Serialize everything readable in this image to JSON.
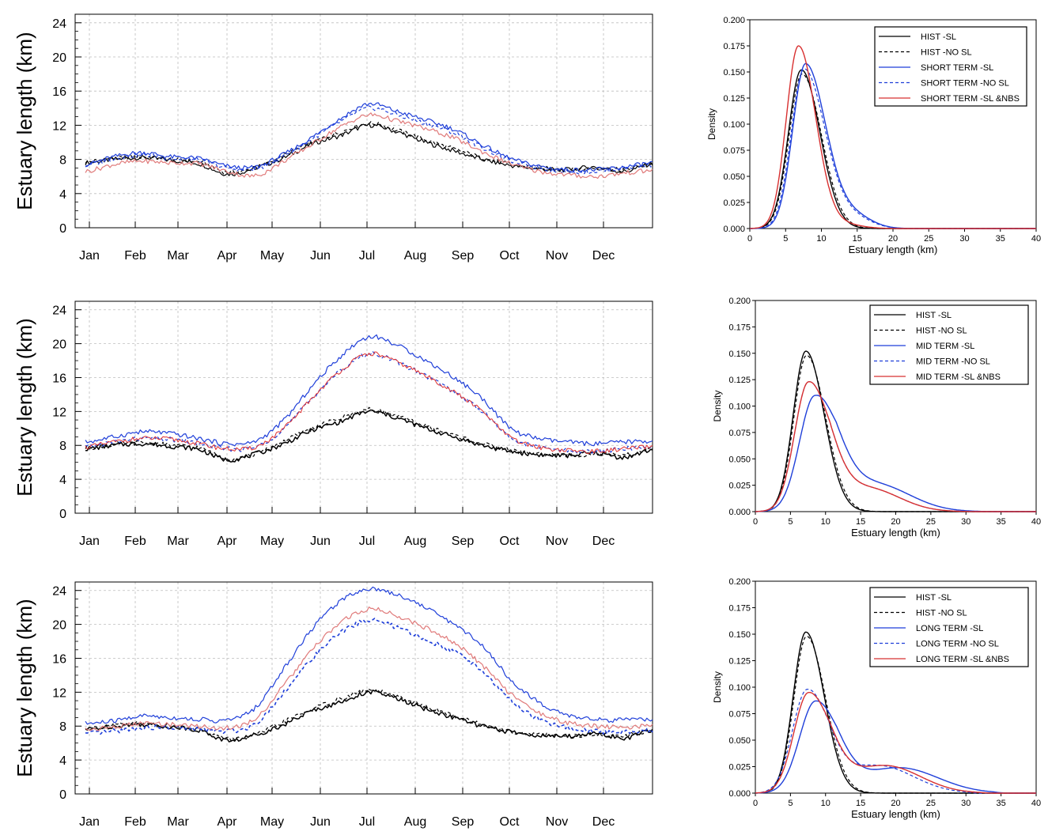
{
  "chart_data": [
    {
      "type": "line",
      "panel": "time-series-short-term",
      "ylabel": "Estuary length (km)",
      "ylim": [
        0,
        25
      ],
      "yticks": [
        0,
        4,
        8,
        12,
        16,
        20,
        24
      ],
      "month_labels": [
        "Jan",
        "Feb",
        "Mar",
        "Apr",
        "May",
        "Jun",
        "Jul",
        "Aug",
        "Sep",
        "Oct",
        "Nov",
        "Dec"
      ],
      "grid": true,
      "series": [
        {
          "name": "HIST -SL",
          "color": "#000000",
          "dash": false,
          "width": 1.2,
          "values": [
            7.6,
            8.0,
            8.2,
            7.9,
            7.5,
            6.3,
            7.0,
            8.2,
            9.8,
            10.8,
            12.0,
            11.2,
            10.0,
            9.0,
            8.0,
            7.3,
            6.9,
            6.8,
            7.1,
            6.6,
            7.5
          ]
        },
        {
          "name": "HIST -NO SL",
          "color": "#000000",
          "dash": true,
          "width": 1.2,
          "values": [
            7.7,
            8.1,
            8.3,
            8.0,
            7.7,
            6.5,
            7.0,
            8.5,
            10.0,
            11.2,
            12.2,
            11.4,
            10.3,
            9.2,
            8.2,
            7.4,
            7.0,
            6.8,
            7.0,
            6.8,
            7.6
          ]
        },
        {
          "name": "SHORT TERM -SL",
          "color": "#1f3fd9",
          "dash": false,
          "width": 1.2,
          "values": [
            7.4,
            8.3,
            8.8,
            8.3,
            8.1,
            7.2,
            7.1,
            8.6,
            10.6,
            12.8,
            14.5,
            13.6,
            12.6,
            11.5,
            9.7,
            8.1,
            7.2,
            6.8,
            6.8,
            7.1,
            7.6
          ]
        },
        {
          "name": "SHORT TERM -NO SL",
          "color": "#1f3fd9",
          "dash": true,
          "width": 1.2,
          "values": [
            7.3,
            8.1,
            8.5,
            8.1,
            7.9,
            7.0,
            6.9,
            8.4,
            10.4,
            12.4,
            14.0,
            13.2,
            12.2,
            11.1,
            9.4,
            7.9,
            7.0,
            6.6,
            6.6,
            7.0,
            7.4
          ]
        },
        {
          "name": "SHORT TERM -SL &NBS",
          "color": "#e07a7a",
          "dash": false,
          "width": 1.2,
          "values": [
            6.6,
            7.4,
            7.8,
            7.6,
            7.5,
            6.6,
            6.1,
            7.8,
            9.8,
            11.8,
            13.2,
            12.5,
            11.6,
            10.5,
            8.9,
            7.5,
            6.6,
            6.2,
            6.0,
            6.4,
            6.7
          ]
        }
      ]
    },
    {
      "type": "line",
      "panel": "time-series-mid-term",
      "ylabel": "Estuary length (km)",
      "ylim": [
        0,
        25
      ],
      "yticks": [
        0,
        4,
        8,
        12,
        16,
        20,
        24
      ],
      "month_labels": [
        "Jan",
        "Feb",
        "Mar",
        "Apr",
        "May",
        "Jun",
        "Jul",
        "Aug",
        "Sep",
        "Oct",
        "Nov",
        "Dec"
      ],
      "grid": true,
      "series": [
        {
          "name": "HIST -SL",
          "color": "#000000",
          "dash": false,
          "width": 1.5,
          "values": [
            7.6,
            8.0,
            8.2,
            7.9,
            7.5,
            6.3,
            7.0,
            8.2,
            9.8,
            10.8,
            12.0,
            11.2,
            10.0,
            9.0,
            8.0,
            7.3,
            6.9,
            6.8,
            7.1,
            6.6,
            7.5
          ]
        },
        {
          "name": "HIST -NO SL",
          "color": "#000000",
          "dash": true,
          "width": 1.2,
          "values": [
            7.7,
            8.1,
            8.3,
            8.0,
            7.7,
            6.5,
            7.0,
            8.5,
            10.0,
            11.2,
            12.2,
            11.4,
            10.3,
            9.2,
            8.2,
            7.4,
            7.0,
            6.8,
            7.0,
            6.8,
            7.6
          ]
        },
        {
          "name": "MID TERM -SL",
          "color": "#1f3fd9",
          "dash": false,
          "width": 1.2,
          "values": [
            8.4,
            9.0,
            9.6,
            9.4,
            8.8,
            8.2,
            8.5,
            11.0,
            15.0,
            18.5,
            20.8,
            19.8,
            18.0,
            16.0,
            13.5,
            10.0,
            8.8,
            8.4,
            8.2,
            8.4,
            8.5
          ]
        },
        {
          "name": "MID TERM -NO SL",
          "color": "#1f3fd9",
          "dash": true,
          "width": 1.2,
          "values": [
            7.8,
            8.4,
            8.8,
            8.7,
            8.2,
            7.6,
            7.8,
            10.0,
            13.6,
            16.8,
            18.8,
            17.8,
            16.2,
            14.3,
            12.0,
            8.9,
            7.8,
            7.4,
            7.3,
            7.6,
            7.8
          ]
        },
        {
          "name": "MID TERM -SL &NBS",
          "color": "#e03030",
          "dash": false,
          "width": 1.0,
          "values": [
            7.8,
            8.4,
            8.8,
            8.7,
            8.2,
            7.6,
            7.8,
            10.0,
            13.6,
            16.8,
            18.8,
            17.8,
            16.2,
            14.3,
            12.0,
            8.9,
            7.8,
            7.4,
            7.3,
            7.6,
            7.8
          ]
        }
      ]
    },
    {
      "type": "line",
      "panel": "time-series-long-term",
      "ylabel": "Estuary length (km)",
      "ylim": [
        0,
        25
      ],
      "yticks": [
        0,
        4,
        8,
        12,
        16,
        20,
        24
      ],
      "month_labels": [
        "Jan",
        "Feb",
        "Mar",
        "Apr",
        "May",
        "Jun",
        "Jul",
        "Aug",
        "Sep",
        "Oct",
        "Nov",
        "Dec"
      ],
      "grid": true,
      "series": [
        {
          "name": "HIST -SL",
          "color": "#000000",
          "dash": false,
          "width": 1.5,
          "values": [
            7.6,
            8.0,
            8.2,
            7.9,
            7.5,
            6.3,
            7.0,
            8.2,
            9.8,
            10.8,
            12.0,
            11.2,
            10.0,
            9.0,
            8.0,
            7.3,
            6.9,
            6.8,
            7.1,
            6.6,
            7.5
          ]
        },
        {
          "name": "HIST -NO SL",
          "color": "#000000",
          "dash": true,
          "width": 1.2,
          "values": [
            7.7,
            8.1,
            8.3,
            8.0,
            7.7,
            6.5,
            7.0,
            8.5,
            10.0,
            11.2,
            12.2,
            11.4,
            10.3,
            9.2,
            8.2,
            7.4,
            7.0,
            6.8,
            7.0,
            6.8,
            7.6
          ]
        },
        {
          "name": "LONG TERM -SL",
          "color": "#1f3fd9",
          "dash": false,
          "width": 1.2,
          "values": [
            8.3,
            8.6,
            9.2,
            9.0,
            8.8,
            8.7,
            10.2,
            14.8,
            19.5,
            22.8,
            24.2,
            23.5,
            22.0,
            20.0,
            17.5,
            13.5,
            10.8,
            9.3,
            8.8,
            8.7,
            8.8
          ]
        },
        {
          "name": "LONG TERM -NO SL",
          "color": "#1f3fd9",
          "dash": true,
          "width": 1.6,
          "values": [
            7.1,
            7.4,
            7.8,
            7.8,
            7.6,
            7.4,
            8.3,
            12.0,
            16.0,
            19.0,
            20.5,
            19.6,
            18.2,
            16.8,
            14.5,
            11.0,
            8.8,
            7.8,
            7.4,
            7.3,
            7.5
          ]
        },
        {
          "name": "LONG TERM -SL &NBS",
          "color": "#e07a7a",
          "dash": false,
          "width": 1.2,
          "values": [
            7.6,
            7.9,
            8.3,
            8.2,
            8.0,
            7.8,
            8.9,
            12.8,
            17.0,
            20.2,
            21.8,
            21.0,
            19.6,
            17.8,
            15.2,
            11.8,
            9.6,
            8.4,
            8.0,
            7.9,
            8.0
          ]
        }
      ]
    },
    {
      "type": "line",
      "panel": "density-short-term",
      "xlabel": "Estuary length (km)",
      "ylabel": "Density",
      "xlim": [
        0,
        40
      ],
      "ylim": [
        0,
        0.2
      ],
      "xticks": [
        0,
        5,
        10,
        15,
        20,
        25,
        30,
        35,
        40
      ],
      "yticks": [
        "0.000",
        "0.025",
        "0.050",
        "0.075",
        "0.100",
        "0.125",
        "0.150",
        "0.175",
        "0.200"
      ],
      "series": [
        {
          "name": "HIST -SL",
          "color": "#000000",
          "dash": false,
          "width": 1.4,
          "peak": 7.2,
          "peak_density": 0.152,
          "spread_left": 1.8,
          "spread_right": 2.6,
          "tail_amplitude": 0.0,
          "tail_center": 17,
          "tail_width": 3,
          "xmax": 22
        },
        {
          "name": "HIST -NO SL",
          "color": "#000000",
          "dash": true,
          "width": 1.2,
          "peak": 7.3,
          "peak_density": 0.148,
          "spread_left": 1.8,
          "spread_right": 2.7,
          "tail_amplitude": 0.0,
          "tail_center": 17,
          "tail_width": 3,
          "xmax": 22
        },
        {
          "name": "SHORT TERM -SL",
          "color": "#1f3fd9",
          "dash": false,
          "width": 1.4,
          "peak": 7.8,
          "peak_density": 0.158,
          "spread_left": 1.8,
          "spread_right": 2.8,
          "tail_amplitude": 0.012,
          "tail_center": 14.5,
          "tail_width": 2.5,
          "xmax": 28
        },
        {
          "name": "SHORT TERM -NO SL",
          "color": "#1f3fd9",
          "dash": true,
          "width": 1.2,
          "peak": 7.6,
          "peak_density": 0.153,
          "spread_left": 1.8,
          "spread_right": 2.9,
          "tail_amplitude": 0.01,
          "tail_center": 14.5,
          "tail_width": 2.5,
          "xmax": 28
        },
        {
          "name": "SHORT TERM -SL &NBS",
          "color": "#d83030",
          "dash": false,
          "width": 1.4,
          "peak": 6.8,
          "peak_density": 0.175,
          "spread_left": 1.7,
          "spread_right": 2.4,
          "tail_amplitude": 0.004,
          "tail_center": 13,
          "tail_width": 2.5,
          "xmax": 26
        }
      ]
    },
    {
      "type": "line",
      "panel": "density-mid-term",
      "xlabel": "Estuary length (km)",
      "ylabel": "Density",
      "xlim": [
        0,
        40
      ],
      "ylim": [
        0,
        0.2
      ],
      "xticks": [
        0,
        5,
        10,
        15,
        20,
        25,
        30,
        35,
        40
      ],
      "yticks": [
        "0.000",
        "0.025",
        "0.050",
        "0.075",
        "0.100",
        "0.125",
        "0.150",
        "0.175",
        "0.200"
      ],
      "series": [
        {
          "name": "HIST -SL",
          "color": "#000000",
          "dash": false,
          "width": 1.4,
          "peak": 7.2,
          "peak_density": 0.152,
          "spread_left": 1.8,
          "spread_right": 2.6,
          "tail_amplitude": 0.0,
          "tail_center": 17,
          "tail_width": 3,
          "xmax": 22
        },
        {
          "name": "HIST -NO SL",
          "color": "#000000",
          "dash": true,
          "width": 1.2,
          "peak": 7.3,
          "peak_density": 0.148,
          "spread_left": 1.8,
          "spread_right": 2.7,
          "tail_amplitude": 0.0,
          "tail_center": 17,
          "tail_width": 3,
          "xmax": 22
        },
        {
          "name": "MID TERM -SL",
          "color": "#1f3fd9",
          "dash": false,
          "width": 1.4,
          "peak": 8.5,
          "peak_density": 0.11,
          "spread_left": 2.2,
          "spread_right": 3.2,
          "tail_amplitude": 0.026,
          "tail_center": 17,
          "tail_width": 5,
          "xmax": 34
        },
        {
          "name": "MID TERM -NO SL",
          "color": "#1f3fd9",
          "dash": true,
          "width": 1.2,
          "peak": 7.6,
          "peak_density": 0.123,
          "spread_left": 2.0,
          "spread_right": 3.0,
          "tail_amplitude": 0.022,
          "tail_center": 16,
          "tail_width": 4.5,
          "xmax": 32
        },
        {
          "name": "MID TERM -SL &NBS",
          "color": "#d83030",
          "dash": false,
          "width": 1.4,
          "peak": 7.6,
          "peak_density": 0.123,
          "spread_left": 2.0,
          "spread_right": 3.0,
          "tail_amplitude": 0.022,
          "tail_center": 16,
          "tail_width": 4.5,
          "xmax": 32
        }
      ]
    },
    {
      "type": "line",
      "panel": "density-long-term",
      "xlabel": "Estuary length (km)",
      "ylabel": "Density",
      "xlim": [
        0,
        40
      ],
      "ylim": [
        0,
        0.2
      ],
      "xticks": [
        0,
        5,
        10,
        15,
        20,
        25,
        30,
        35,
        40
      ],
      "yticks": [
        "0.000",
        "0.025",
        "0.050",
        "0.075",
        "0.100",
        "0.125",
        "0.150",
        "0.175",
        "0.200"
      ],
      "series": [
        {
          "name": "HIST -SL",
          "color": "#000000",
          "dash": false,
          "width": 1.4,
          "peak": 7.2,
          "peak_density": 0.152,
          "spread_left": 1.8,
          "spread_right": 2.6,
          "tail_amplitude": 0.0,
          "tail_center": 17,
          "tail_width": 3,
          "xmax": 22
        },
        {
          "name": "HIST -NO SL",
          "color": "#000000",
          "dash": true,
          "width": 1.2,
          "peak": 7.3,
          "peak_density": 0.148,
          "spread_left": 1.8,
          "spread_right": 2.7,
          "tail_amplitude": 0.0,
          "tail_center": 17,
          "tail_width": 3,
          "xmax": 22
        },
        {
          "name": "LONG TERM -SL",
          "color": "#1f3fd9",
          "dash": false,
          "width": 1.4,
          "peak": 8.6,
          "peak_density": 0.087,
          "spread_left": 2.3,
          "spread_right": 3.2,
          "tail_amplitude": 0.024,
          "tail_center": 20.5,
          "tail_width": 5.5,
          "xmax": 36
        },
        {
          "name": "LONG TERM -NO SL",
          "color": "#1f3fd9",
          "dash": true,
          "width": 1.2,
          "peak": 7.4,
          "peak_density": 0.098,
          "spread_left": 2.1,
          "spread_right": 3.0,
          "tail_amplitude": 0.026,
          "tail_center": 17.5,
          "tail_width": 5,
          "xmax": 32
        },
        {
          "name": "LONG TERM -SL &NBS",
          "color": "#d83030",
          "dash": false,
          "width": 1.4,
          "peak": 7.6,
          "peak_density": 0.095,
          "spread_left": 2.1,
          "spread_right": 3.1,
          "tail_amplitude": 0.026,
          "tail_center": 18.5,
          "tail_width": 5,
          "xmax": 34
        }
      ]
    }
  ]
}
